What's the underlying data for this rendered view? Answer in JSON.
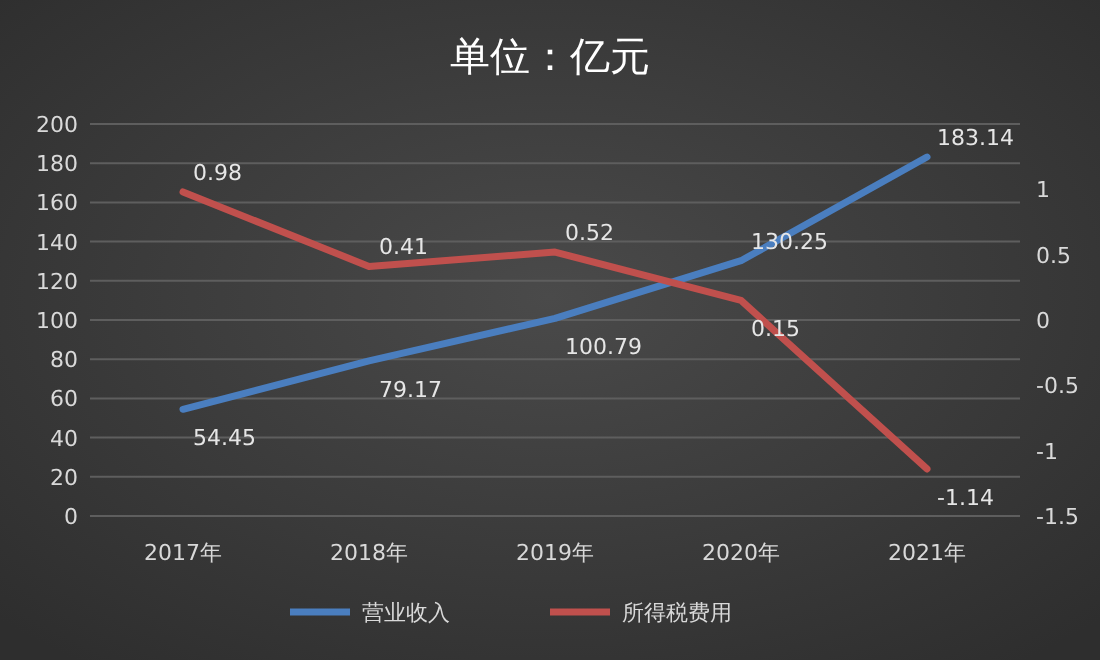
{
  "chart_data": {
    "type": "line",
    "title": "单位：亿元",
    "categories": [
      "2017年",
      "2018年",
      "2019年",
      "2020年",
      "2021年"
    ],
    "series": [
      {
        "name": "营业收入",
        "color": "#4a7ebf",
        "values": [
          54.45,
          79.17,
          100.79,
          130.25,
          183.14
        ]
      },
      {
        "name": "所得税费用",
        "color": "#c0504d",
        "values": [
          0.98,
          0.41,
          0.52,
          0.15,
          -1.14
        ],
        "axis": "y2"
      }
    ],
    "ylim": [
      0,
      200
    ],
    "yticks": [
      0,
      20,
      40,
      60,
      80,
      100,
      120,
      140,
      160,
      180,
      200
    ],
    "y2lim": [
      -1.5,
      1.5
    ],
    "y2ticks": [
      -1.5,
      -1,
      -0.5,
      0,
      0.5,
      1
    ],
    "grid": "y",
    "legend": "bottom",
    "data_labels": true,
    "marker": "none",
    "line_style": "solid"
  }
}
